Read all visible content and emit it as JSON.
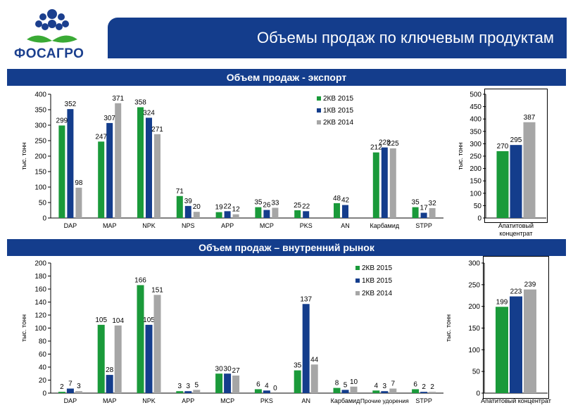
{
  "header": {
    "logo_text": "ФОСАГРО",
    "title": "Объемы продаж по ключевым продуктам"
  },
  "sections": {
    "export_title": "Объем продаж - экспорт",
    "domestic_title": "Объем продаж – внутренний рынок"
  },
  "colors": {
    "green": "#1a9a3a",
    "blue": "#143d8c",
    "gray": "#a6a6a6",
    "logo_blue": "#1b3f8e",
    "logo_green": "#3aaa35"
  },
  "chart_data": [
    {
      "id": "export-main",
      "type": "bar",
      "title": "Объем продаж - экспорт",
      "ylabel": "тыс. тонн",
      "ylim": [
        0,
        400
      ],
      "yticks": [
        0,
        50,
        100,
        150,
        200,
        250,
        300,
        350,
        400
      ],
      "categories": [
        "DAP",
        "MAP",
        "NPK",
        "NPS",
        "APP",
        "MCP",
        "PKS",
        "AN",
        "Карбамид",
        "STPP"
      ],
      "series": [
        {
          "name": "2КВ 2015",
          "color": "green",
          "values": [
            299,
            247,
            358,
            71,
            19,
            35,
            25,
            48,
            212,
            35
          ]
        },
        {
          "name": "1КВ 2015",
          "color": "blue",
          "values": [
            352,
            307,
            324,
            39,
            22,
            26,
            22,
            42,
            228,
            17
          ]
        },
        {
          "name": "2КВ 2014",
          "color": "gray",
          "values": [
            98,
            371,
            271,
            20,
            12,
            33,
            null,
            null,
            225,
            32
          ]
        }
      ],
      "legend": "top-right"
    },
    {
      "id": "export-apatite",
      "type": "bar",
      "ylabel": "тыс. тонн",
      "ylim": [
        0,
        500
      ],
      "yticks": [
        0,
        50,
        100,
        150,
        200,
        250,
        300,
        350,
        400,
        450,
        500
      ],
      "categories": [
        "Апатитовый концентрат"
      ],
      "category_lines": [
        "Апатитовый",
        "концентрат"
      ],
      "series": [
        {
          "name": "2КВ 2015",
          "color": "green",
          "values": [
            270
          ]
        },
        {
          "name": "1КВ 2015",
          "color": "blue",
          "values": [
            295
          ]
        },
        {
          "name": "2КВ 2014",
          "color": "gray",
          "values": [
            387
          ]
        }
      ]
    },
    {
      "id": "domestic-main",
      "type": "bar",
      "title": "Объем продаж – внутренний рынок",
      "ylabel": "тыс. тонн",
      "ylim": [
        0,
        200
      ],
      "yticks": [
        0,
        20,
        40,
        60,
        80,
        100,
        120,
        140,
        160,
        180,
        200
      ],
      "categories": [
        "DAP",
        "MAP",
        "NPK",
        "APP",
        "MCP",
        "PKS",
        "AN",
        "Карбамид",
        "Прочие удорения",
        "STPP"
      ],
      "series": [
        {
          "name": "2КВ 2015",
          "color": "green",
          "values": [
            2,
            105,
            166,
            3,
            30,
            6,
            35,
            8,
            4,
            6
          ]
        },
        {
          "name": "1КВ 2015",
          "color": "blue",
          "values": [
            7,
            28,
            105,
            3,
            30,
            4,
            137,
            5,
            3,
            2
          ]
        },
        {
          "name": "2КВ 2014",
          "color": "gray",
          "values": [
            3,
            104,
            151,
            5,
            27,
            0,
            44,
            10,
            7,
            2
          ]
        }
      ],
      "legend": "top-right"
    },
    {
      "id": "domestic-apatite",
      "type": "bar",
      "ylabel": "тыс. тонн",
      "ylim": [
        0,
        300
      ],
      "yticks": [
        0,
        50,
        100,
        150,
        200,
        250,
        300
      ],
      "categories": [
        "Апатитовый концентрат"
      ],
      "category_lines": [
        "Апатитовый концентрат"
      ],
      "series": [
        {
          "name": "2КВ 2015",
          "color": "green",
          "values": [
            199
          ]
        },
        {
          "name": "1КВ 2015",
          "color": "blue",
          "values": [
            223
          ]
        },
        {
          "name": "2КВ 2014",
          "color": "gray",
          "values": [
            239
          ]
        }
      ]
    }
  ]
}
